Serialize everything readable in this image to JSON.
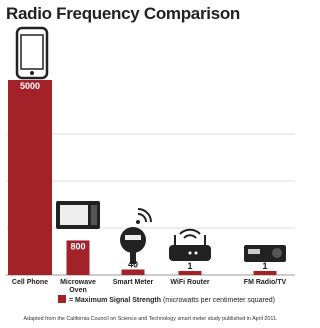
{
  "chart_data": {
    "type": "bar",
    "title": "Radio Frequency Comparison",
    "categories": [
      "Cell Phone",
      "Microwave Oven",
      "Smart Meter",
      "WiFi Router",
      "FM Radio/TV"
    ],
    "values": [
      5000,
      800,
      40,
      1,
      1
    ],
    "color": "#a3222a",
    "legend_label": "= Maximum Signal Strength",
    "legend_unit": "(microwatts per centimeter squared)",
    "source": "Adapted from the California Council on Science and Technology smart meter study published in April 2011."
  }
}
